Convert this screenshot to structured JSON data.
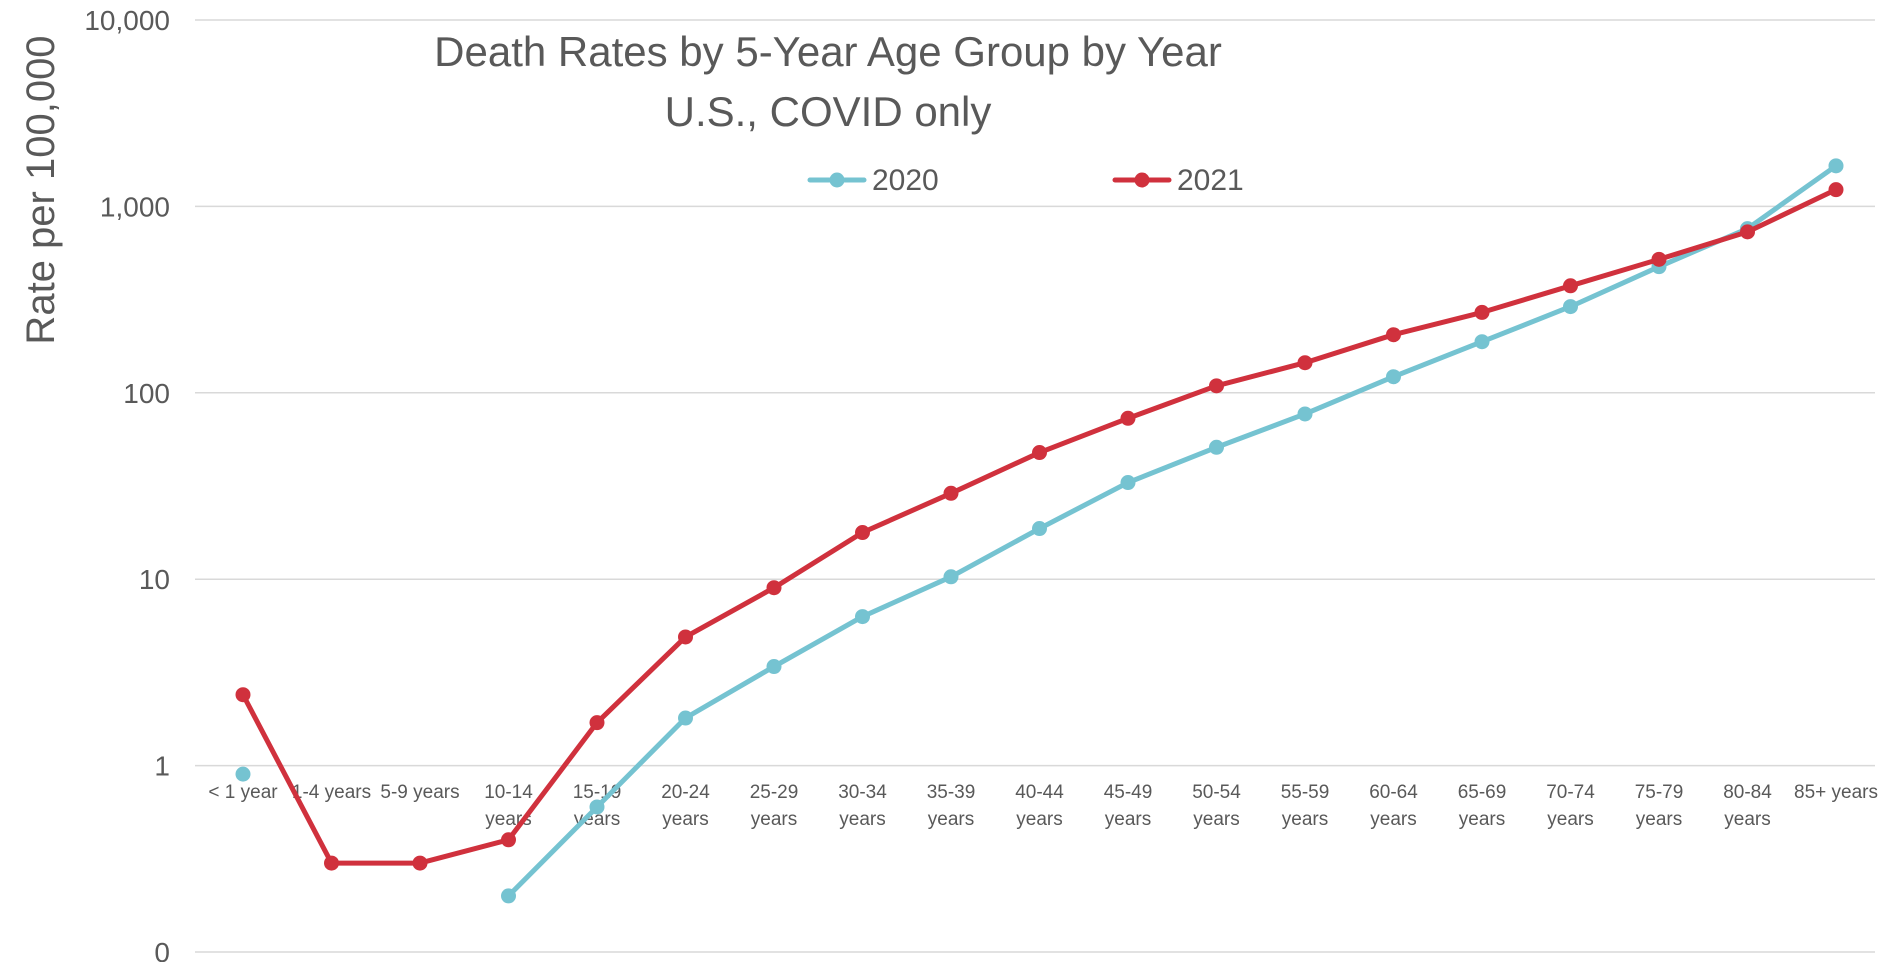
{
  "chart_data": {
    "type": "line",
    "title": "Death Rates by 5-Year Age Group by Year",
    "subtitle": "U.S., COVID only",
    "xlabel": "",
    "ylabel": "Rate per 100,000",
    "y_scale": "log",
    "ylim": [
      0.1,
      10000
    ],
    "y_ticks": [
      {
        "value": 0.1,
        "label": "0"
      },
      {
        "value": 1,
        "label": "1"
      },
      {
        "value": 10,
        "label": "10"
      },
      {
        "value": 100,
        "label": "100"
      },
      {
        "value": 1000,
        "label": "1,000"
      },
      {
        "value": 10000,
        "label": "10,000"
      }
    ],
    "grid": true,
    "legend_position": "top-center",
    "categories": [
      [
        "< 1 year"
      ],
      [
        "1-4 years"
      ],
      [
        "5-9 years"
      ],
      [
        "10-14",
        "years"
      ],
      [
        "15-19",
        "years"
      ],
      [
        "20-24",
        "years"
      ],
      [
        "25-29",
        "years"
      ],
      [
        "30-34",
        "years"
      ],
      [
        "35-39",
        "years"
      ],
      [
        "40-44",
        "years"
      ],
      [
        "45-49",
        "years"
      ],
      [
        "50-54",
        "years"
      ],
      [
        "55-59",
        "years"
      ],
      [
        "60-64",
        "years"
      ],
      [
        "65-69",
        "years"
      ],
      [
        "70-74",
        "years"
      ],
      [
        "75-79",
        "years"
      ],
      [
        "80-84",
        "years"
      ],
      [
        "85+ years"
      ]
    ],
    "series": [
      {
        "name": "2020",
        "color": "#75C3D1",
        "values": [
          0.9,
          null,
          null,
          0.2,
          0.6,
          1.8,
          3.4,
          6.3,
          10.3,
          18.7,
          33,
          51,
          77,
          122,
          188,
          290,
          475,
          760,
          1650
        ]
      },
      {
        "name": "2021",
        "color": "#D0313D",
        "values": [
          2.4,
          0.3,
          0.3,
          0.4,
          1.7,
          4.9,
          9,
          17.8,
          28.9,
          47.8,
          73,
          109,
          145,
          205,
          270,
          375,
          520,
          730,
          1230
        ]
      }
    ]
  }
}
